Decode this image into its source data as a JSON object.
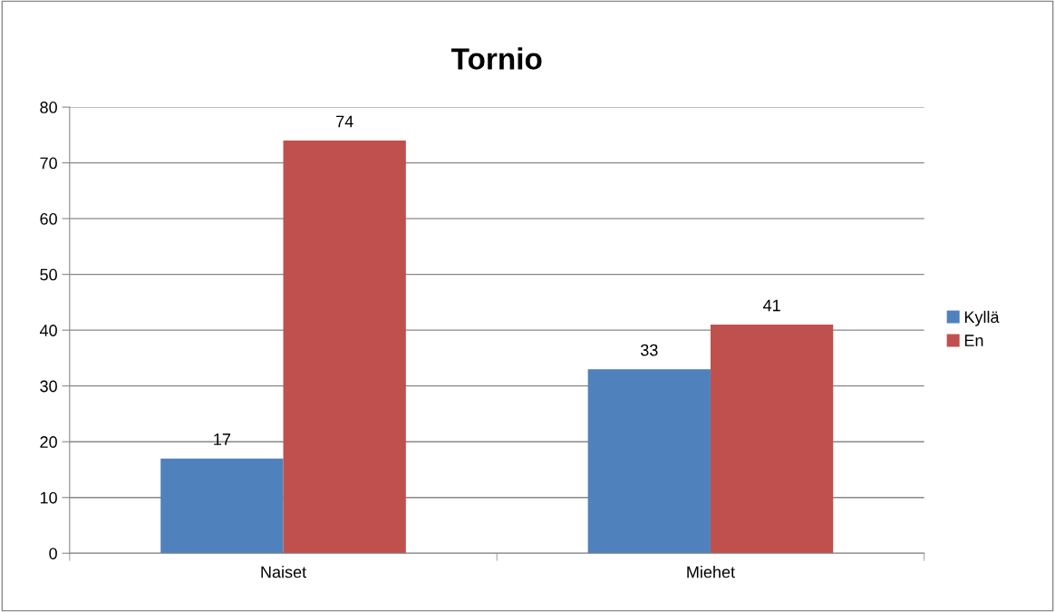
{
  "chart_data": {
    "type": "bar",
    "title": "Tornio",
    "categories": [
      "Naiset",
      "Miehet"
    ],
    "series": [
      {
        "name": "Kyllä",
        "color": "#4f81bd",
        "values": [
          17,
          33
        ]
      },
      {
        "name": "En",
        "color": "#c0504d",
        "values": [
          74,
          41
        ]
      }
    ],
    "ylim": [
      0,
      80
    ],
    "yticks": [
      0,
      10,
      20,
      30,
      40,
      50,
      60,
      70,
      80
    ],
    "grid": "y",
    "legend": "right",
    "data_labels": true
  }
}
